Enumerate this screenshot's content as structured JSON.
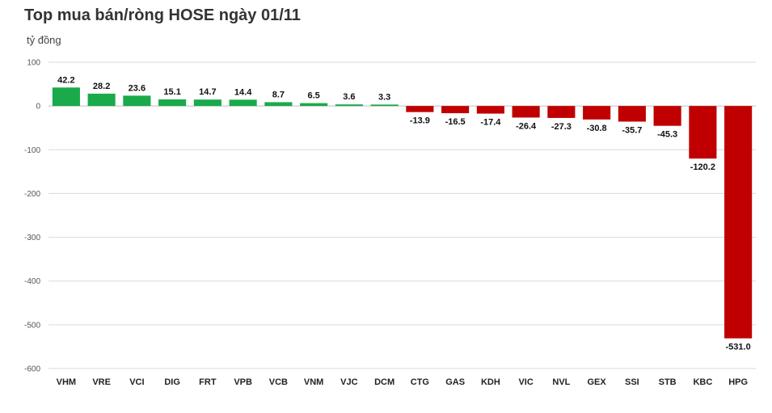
{
  "chart_data": {
    "type": "bar",
    "title": "Top mua bán/ròng HOSE ngày 01/11",
    "ylabel": "tỷ đồng",
    "xlabel": "",
    "ylim": [
      -600,
      100
    ],
    "yticks": [
      100,
      0,
      -100,
      -200,
      -300,
      -400,
      -500,
      -600
    ],
    "grid": true,
    "categories": [
      "VHM",
      "VRE",
      "VCI",
      "DIG",
      "FRT",
      "VPB",
      "VCB",
      "VNM",
      "VJC",
      "DCM",
      "CTG",
      "GAS",
      "KDH",
      "VIC",
      "NVL",
      "GEX",
      "SSI",
      "STB",
      "KBC",
      "HPG"
    ],
    "values": [
      42.2,
      28.2,
      23.6,
      15.1,
      14.7,
      14.4,
      8.7,
      6.5,
      3.6,
      3.3,
      -13.9,
      -16.5,
      -17.4,
      -26.4,
      -27.3,
      -30.8,
      -35.7,
      -45.3,
      -120.2,
      -531.0
    ],
    "value_labels": [
      "42.2",
      "28.2",
      "23.6",
      "15.1",
      "14.7",
      "14.4",
      "8.7",
      "6.5",
      "3.6",
      "3.3",
      "-13.9",
      "-16.5",
      "-17.4",
      "-26.4",
      "-27.3",
      "-30.8",
      "-35.7",
      "-45.3",
      "-120.2",
      "-531.0"
    ],
    "colors": {
      "positive": "#1aaa4b",
      "negative": "#c00000",
      "grid": "#d9d9d9",
      "axis": "#bfbfbf"
    }
  }
}
